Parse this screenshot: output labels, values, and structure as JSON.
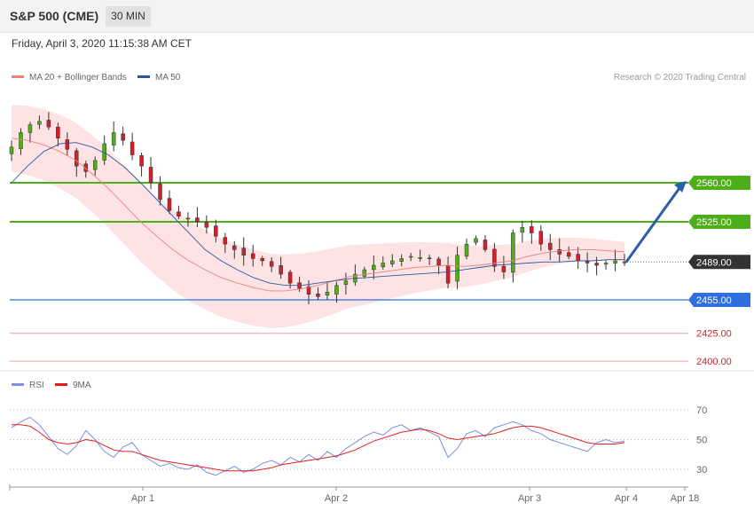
{
  "header": {
    "title": "S&P 500 (CME)",
    "interval": "30 MIN"
  },
  "datetime": "Friday, April 3, 2020 11:15:38 AM CET",
  "legend": {
    "ma20_label": "MA 20 + Bollinger Bands",
    "ma50_label": "MA 50",
    "copyright": "Research © 2020 Trading Central"
  },
  "colors": {
    "ma20": "#f08080",
    "ma50": "#2c5aa0",
    "bollinger_fill": "#fde3e3",
    "resistance": "#4caf18",
    "support": "#2f6fe0",
    "target_arrow": "#2a5ea8",
    "rsi": "#7b8fe0",
    "rsi_ma": "#e02020",
    "price_up": "#4caf18",
    "price_down": "#d0202a"
  },
  "rsi_legend": {
    "rsi_label": "RSI",
    "ma_label": "9MA"
  },
  "chart_data": [
    {
      "type": "candlestick",
      "title": "S&P 500 (CME)",
      "interval": "30 MIN",
      "ylim": [
        2390,
        2640
      ],
      "x_labels": [
        "Apr 1",
        "Apr 2",
        "Apr 3",
        "Apr 4",
        "Apr 18"
      ],
      "levels": [
        {
          "value": 2560.0,
          "label": "2560.00",
          "kind": "resistance"
        },
        {
          "value": 2525.0,
          "label": "2525.00",
          "kind": "resistance"
        },
        {
          "value": 2489.0,
          "label": "2489.00",
          "kind": "current"
        },
        {
          "value": 2455.0,
          "label": "2455.00",
          "kind": "support"
        },
        {
          "value": 2425.0,
          "label": "2425.00",
          "kind": "support_minor"
        },
        {
          "value": 2400.0,
          "label": "2400.00",
          "kind": "support_minor"
        }
      ],
      "close_path": [
        2592,
        2605,
        2612,
        2615,
        2610,
        2600,
        2590,
        2575,
        2570,
        2580,
        2595,
        2605,
        2598,
        2585,
        2575,
        2560,
        2545,
        2535,
        2530,
        2528,
        2525,
        2520,
        2512,
        2505,
        2500,
        2495,
        2492,
        2490,
        2485,
        2478,
        2470,
        2465,
        2460,
        2458,
        2462,
        2468,
        2472,
        2478,
        2482,
        2486,
        2488,
        2490,
        2492,
        2494,
        2493,
        2492,
        2486,
        2470,
        2495,
        2505,
        2510,
        2500,
        2485,
        2480,
        2515,
        2520,
        2515,
        2505,
        2500,
        2496,
        2494,
        2490,
        2488,
        2486,
        2488,
        2490,
        2489
      ],
      "ma20": [
        2600,
        2598,
        2594,
        2588,
        2580,
        2568,
        2555,
        2540,
        2525,
        2512,
        2500,
        2490,
        2482,
        2475,
        2470,
        2466,
        2463,
        2463,
        2465,
        2468,
        2472,
        2476,
        2478,
        2480,
        2482,
        2484,
        2485,
        2486,
        2485,
        2486,
        2488,
        2490,
        2494,
        2497,
        2499,
        2500,
        2500,
        2499,
        2498
      ],
      "ma50": [
        2560,
        2575,
        2588,
        2595,
        2596,
        2592,
        2585,
        2574,
        2560,
        2545,
        2530,
        2515,
        2500,
        2490,
        2482,
        2475,
        2470,
        2468,
        2468,
        2470,
        2472,
        2474,
        2475,
        2476,
        2477,
        2478,
        2479,
        2480,
        2482,
        2484,
        2486,
        2487,
        2488,
        2489,
        2489,
        2490,
        2490,
        2491,
        2491
      ],
      "target": {
        "from": 2489,
        "to": 2560
      }
    },
    {
      "type": "line",
      "title": "RSI",
      "ylim": [
        20,
        80
      ],
      "y_ticks": [
        70,
        50,
        30
      ],
      "series": [
        {
          "name": "RSI",
          "values": [
            58,
            62,
            65,
            60,
            52,
            44,
            40,
            46,
            56,
            50,
            42,
            38,
            45,
            48,
            40,
            36,
            32,
            34,
            31,
            30,
            33,
            28,
            26,
            29,
            32,
            28,
            30,
            34,
            36,
            33,
            38,
            35,
            40,
            36,
            42,
            38,
            44,
            48,
            52,
            55,
            53,
            58,
            60,
            56,
            58,
            55,
            52,
            38,
            44,
            54,
            56,
            52,
            58,
            60,
            62,
            60,
            56,
            54,
            50,
            48,
            46,
            44,
            42,
            48,
            50,
            48,
            49
          ]
        },
        {
          "name": "9MA",
          "values": [
            60,
            60,
            59,
            55,
            50,
            48,
            47,
            48,
            50,
            49,
            46,
            43,
            42,
            42,
            40,
            38,
            36,
            35,
            34,
            33,
            32,
            31,
            30,
            29,
            29,
            29,
            29,
            30,
            31,
            33,
            34,
            35,
            36,
            37,
            38,
            39,
            41,
            43,
            46,
            49,
            51,
            53,
            55,
            56,
            57,
            56,
            54,
            51,
            50,
            51,
            52,
            53,
            54,
            56,
            58,
            59,
            59,
            58,
            56,
            54,
            52,
            50,
            48,
            47,
            47,
            47,
            48
          ]
        }
      ]
    }
  ]
}
